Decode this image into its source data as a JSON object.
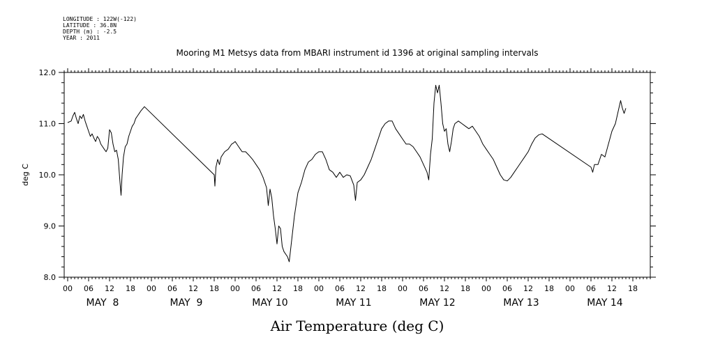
{
  "meta": {
    "longitude": "LONGITUDE : 122W(-122)",
    "latitude": "LATITUDE : 36.8N",
    "depth": "DEPTH (m) : -2.5",
    "year": "YEAR : 2011"
  },
  "chart_data": {
    "type": "line",
    "title": "Mooring M1 Metsys data from MBARI instrument id 1396 at original sampling intervals",
    "xlabel": "Air Temperature (deg C)",
    "ylabel": "deg C",
    "ylim": [
      8.0,
      12.0
    ],
    "xlim_hours": [
      -1,
      167
    ],
    "y_ticks": [
      "8.0",
      "9.0",
      "10.0",
      "11.0",
      "12.0"
    ],
    "hour_tick_labels": [
      "00",
      "06",
      "12",
      "18"
    ],
    "day_labels": [
      "MAY  8",
      "MAY  9",
      "MAY 10",
      "MAY 11",
      "MAY 12",
      "MAY 13",
      "MAY 14"
    ],
    "series": [
      {
        "values_hour_temp": [
          [
            0,
            11.02
          ],
          [
            1,
            11.05
          ],
          [
            1.5,
            11.15
          ],
          [
            2,
            11.22
          ],
          [
            2.5,
            11.1
          ],
          [
            3,
            11.0
          ],
          [
            3.5,
            11.15
          ],
          [
            4,
            11.1
          ],
          [
            4.5,
            11.18
          ],
          [
            5,
            11.05
          ],
          [
            5.5,
            10.95
          ],
          [
            6,
            10.85
          ],
          [
            6.5,
            10.75
          ],
          [
            7,
            10.8
          ],
          [
            7.5,
            10.72
          ],
          [
            8,
            10.65
          ],
          [
            8.5,
            10.75
          ],
          [
            9,
            10.7
          ],
          [
            9.5,
            10.6
          ],
          [
            10,
            10.55
          ],
          [
            10.5,
            10.5
          ],
          [
            11,
            10.45
          ],
          [
            11.5,
            10.52
          ],
          [
            12,
            10.88
          ],
          [
            12.5,
            10.82
          ],
          [
            13,
            10.6
          ],
          [
            13.5,
            10.45
          ],
          [
            14,
            10.48
          ],
          [
            14.5,
            10.3
          ],
          [
            15,
            9.85
          ],
          [
            15.3,
            9.6
          ],
          [
            15.6,
            10.0
          ],
          [
            16,
            10.35
          ],
          [
            16.5,
            10.55
          ],
          [
            17,
            10.6
          ],
          [
            17.5,
            10.75
          ],
          [
            18,
            10.85
          ],
          [
            18.5,
            10.95
          ],
          [
            19,
            11.0
          ],
          [
            19.5,
            11.1
          ],
          [
            20,
            11.15
          ],
          [
            20.5,
            11.2
          ],
          [
            21,
            11.25
          ],
          [
            22,
            11.33
          ],
          [
            42,
            10.0
          ],
          [
            42.2,
            9.78
          ],
          [
            42.5,
            10.15
          ],
          [
            43,
            10.3
          ],
          [
            43.5,
            10.2
          ],
          [
            44,
            10.35
          ],
          [
            45,
            10.45
          ],
          [
            46,
            10.5
          ],
          [
            46.5,
            10.55
          ],
          [
            47,
            10.6
          ],
          [
            47.5,
            10.62
          ],
          [
            48,
            10.65
          ],
          [
            48.5,
            10.6
          ],
          [
            49,
            10.55
          ],
          [
            49.5,
            10.5
          ],
          [
            50,
            10.45
          ],
          [
            51,
            10.45
          ],
          [
            52,
            10.38
          ],
          [
            53,
            10.3
          ],
          [
            54,
            10.2
          ],
          [
            55,
            10.1
          ],
          [
            56,
            9.95
          ],
          [
            57,
            9.75
          ],
          [
            57.5,
            9.4
          ],
          [
            58,
            9.72
          ],
          [
            58.5,
            9.55
          ],
          [
            59,
            9.2
          ],
          [
            59.5,
            8.95
          ],
          [
            60,
            8.65
          ],
          [
            60.5,
            9.0
          ],
          [
            61,
            8.95
          ],
          [
            61.5,
            8.6
          ],
          [
            62,
            8.5
          ],
          [
            63,
            8.4
          ],
          [
            63.5,
            8.3
          ],
          [
            64,
            8.6
          ],
          [
            65,
            9.2
          ],
          [
            66,
            9.65
          ],
          [
            67,
            9.85
          ],
          [
            68,
            10.1
          ],
          [
            69,
            10.25
          ],
          [
            70,
            10.3
          ],
          [
            71,
            10.4
          ],
          [
            72,
            10.45
          ],
          [
            73,
            10.45
          ],
          [
            74,
            10.3
          ],
          [
            75,
            10.1
          ],
          [
            76,
            10.05
          ],
          [
            77,
            9.95
          ],
          [
            78,
            10.05
          ],
          [
            79,
            9.95
          ],
          [
            80,
            10.0
          ],
          [
            81,
            9.98
          ],
          [
            82,
            9.8
          ],
          [
            82.5,
            9.5
          ],
          [
            83,
            9.85
          ],
          [
            84,
            9.9
          ],
          [
            85,
            10.0
          ],
          [
            86,
            10.15
          ],
          [
            87,
            10.3
          ],
          [
            88,
            10.5
          ],
          [
            89,
            10.7
          ],
          [
            90,
            10.9
          ],
          [
            91,
            11.0
          ],
          [
            92,
            11.05
          ],
          [
            93,
            11.05
          ],
          [
            94,
            10.9
          ],
          [
            95,
            10.8
          ],
          [
            96,
            10.7
          ],
          [
            97,
            10.6
          ],
          [
            98,
            10.6
          ],
          [
            99,
            10.55
          ],
          [
            100,
            10.45
          ],
          [
            101,
            10.35
          ],
          [
            102,
            10.2
          ],
          [
            103,
            10.05
          ],
          [
            103.5,
            9.9
          ],
          [
            104,
            10.4
          ],
          [
            104.5,
            10.7
          ],
          [
            105,
            11.4
          ],
          [
            105.5,
            11.75
          ],
          [
            106,
            11.6
          ],
          [
            106.5,
            11.75
          ],
          [
            107,
            11.4
          ],
          [
            107.5,
            11.0
          ],
          [
            108,
            10.85
          ],
          [
            108.5,
            10.9
          ],
          [
            109,
            10.6
          ],
          [
            109.5,
            10.45
          ],
          [
            110,
            10.65
          ],
          [
            110.5,
            10.9
          ],
          [
            111,
            11.0
          ],
          [
            112,
            11.05
          ],
          [
            113,
            11.0
          ],
          [
            114,
            10.95
          ],
          [
            115,
            10.9
          ],
          [
            116,
            10.95
          ],
          [
            117,
            10.85
          ],
          [
            118,
            10.75
          ],
          [
            119,
            10.6
          ],
          [
            120,
            10.5
          ],
          [
            121,
            10.4
          ],
          [
            122,
            10.3
          ],
          [
            123,
            10.15
          ],
          [
            124,
            10.0
          ],
          [
            125,
            9.9
          ],
          [
            126,
            9.88
          ],
          [
            127,
            9.95
          ],
          [
            128,
            10.05
          ],
          [
            129,
            10.15
          ],
          [
            130,
            10.25
          ],
          [
            131,
            10.35
          ],
          [
            132,
            10.45
          ],
          [
            133,
            10.6
          ],
          [
            134,
            10.72
          ],
          [
            135,
            10.78
          ],
          [
            136,
            10.8
          ],
          [
            150,
            10.15
          ],
          [
            150.5,
            10.05
          ],
          [
            151,
            10.2
          ],
          [
            152,
            10.2
          ],
          [
            153,
            10.4
          ],
          [
            154,
            10.35
          ],
          [
            155,
            10.6
          ],
          [
            156,
            10.85
          ],
          [
            157,
            11.0
          ],
          [
            157.5,
            11.15
          ],
          [
            158,
            11.3
          ],
          [
            158.5,
            11.45
          ],
          [
            159,
            11.3
          ],
          [
            159.5,
            11.2
          ],
          [
            160,
            11.3
          ]
        ]
      }
    ]
  }
}
